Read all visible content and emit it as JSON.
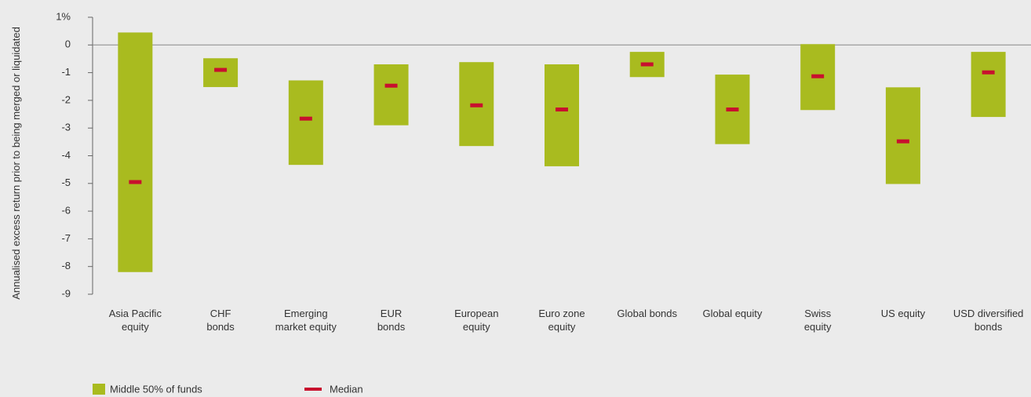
{
  "chart_data": {
    "type": "floating_bar",
    "y_label": "Annualised excess return prior to being merged or liquidated",
    "categories": [
      "Asia Pacific\nequity",
      "CHF\nbonds",
      "Emerging\nmarket equity",
      "EUR\nbonds",
      "European\nequity",
      "Euro zone\nequity",
      "Global bonds",
      "Global equity",
      "Swiss\nequity",
      "US equity",
      "USD diversified\nbonds"
    ],
    "series": [
      {
        "name": "Middle 50% of funds",
        "color": "#a9bb1f",
        "high": [
          0.45,
          -0.48,
          -1.28,
          -0.7,
          -0.62,
          -0.7,
          -0.25,
          -1.07,
          0.03,
          -1.53,
          -0.25
        ],
        "low": [
          -8.2,
          -1.52,
          -4.33,
          -2.9,
          -3.65,
          -4.38,
          -1.16,
          -3.58,
          -2.35,
          -5.02,
          -2.6
        ]
      },
      {
        "name": "Median",
        "color": "#c8102e",
        "values": [
          -4.95,
          -0.9,
          -2.66,
          -1.47,
          -2.18,
          -2.33,
          -0.7,
          -2.33,
          -1.13,
          -3.48,
          -0.99
        ]
      }
    ],
    "ylim": [
      -9,
      1
    ],
    "yticks": [
      {
        "value": 1,
        "label": "1%"
      },
      0,
      -1,
      -2,
      -3,
      -4,
      -5,
      -6,
      -7,
      -8,
      -9
    ]
  }
}
